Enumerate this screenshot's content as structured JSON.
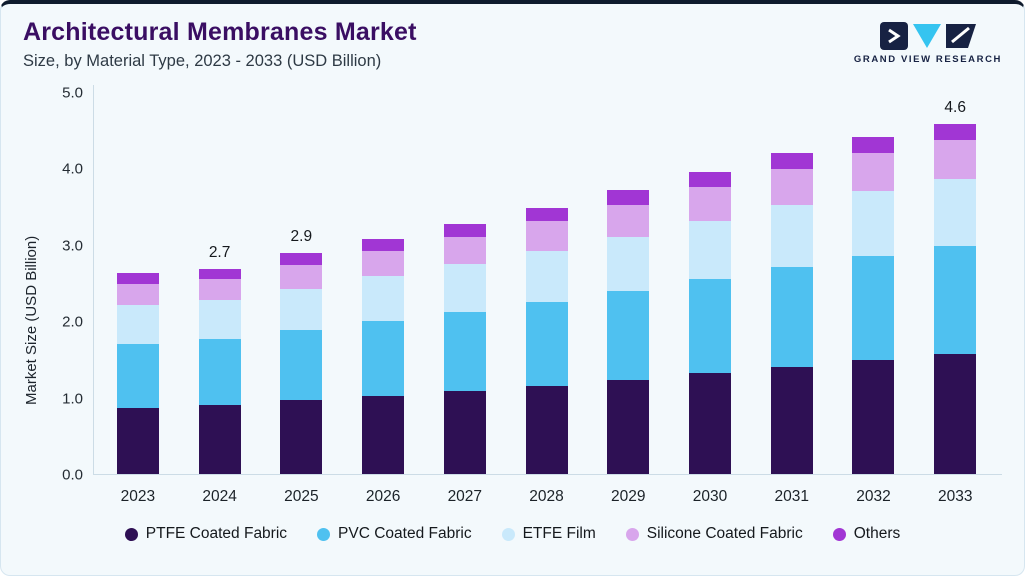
{
  "header": {
    "title": "Architectural Membranes Market",
    "subtitle": "Size, by Material Type, 2023 - 2033 (USD Billion)",
    "logo_text": "GRAND VIEW RESEARCH"
  },
  "chart_data": {
    "type": "bar",
    "stacked": true,
    "title": "Architectural Membranes Market Size, by Material Type, 2023 - 2033 (USD Billion)",
    "xlabel": "",
    "ylabel": "Market Size (USD Billion)",
    "ylim": [
      0,
      5.0
    ],
    "yticks": [
      "0.0",
      "1.0",
      "2.0",
      "3.0",
      "4.0",
      "5.0"
    ],
    "grid": false,
    "legend_position": "bottom",
    "categories": [
      "2023",
      "2024",
      "2025",
      "2026",
      "2027",
      "2028",
      "2029",
      "2030",
      "2031",
      "2032",
      "2033"
    ],
    "total_labels": [
      "",
      "2.7",
      "2.9",
      "",
      "",
      "",
      "",
      "",
      "",
      "",
      "4.6"
    ],
    "totals": [
      2.64,
      2.7,
      2.9,
      3.09,
      3.29,
      3.5,
      3.73,
      3.97,
      4.22,
      4.43,
      4.6
    ],
    "series": [
      {
        "name": "PTFE Coated Fabric",
        "color": "#2e1054",
        "values": [
          0.88,
          0.92,
          0.98,
          1.04,
          1.1,
          1.17,
          1.25,
          1.33,
          1.42,
          1.51,
          1.58
        ]
      },
      {
        "name": "PVC Coated Fabric",
        "color": "#4fc1f0",
        "values": [
          0.84,
          0.86,
          0.92,
          0.98,
          1.04,
          1.1,
          1.16,
          1.23,
          1.3,
          1.36,
          1.42
        ]
      },
      {
        "name": "ETFE Film",
        "color": "#c9e9fb",
        "values": [
          0.5,
          0.51,
          0.54,
          0.58,
          0.62,
          0.66,
          0.71,
          0.76,
          0.81,
          0.85,
          0.88
        ]
      },
      {
        "name": "Silicone Coated Fabric",
        "color": "#d8a6ec",
        "values": [
          0.28,
          0.28,
          0.31,
          0.33,
          0.36,
          0.39,
          0.42,
          0.45,
          0.48,
          0.49,
          0.5
        ]
      },
      {
        "name": "Others",
        "color": "#a136d4",
        "values": [
          0.14,
          0.13,
          0.15,
          0.16,
          0.17,
          0.18,
          0.19,
          0.2,
          0.21,
          0.22,
          0.22
        ]
      }
    ]
  }
}
